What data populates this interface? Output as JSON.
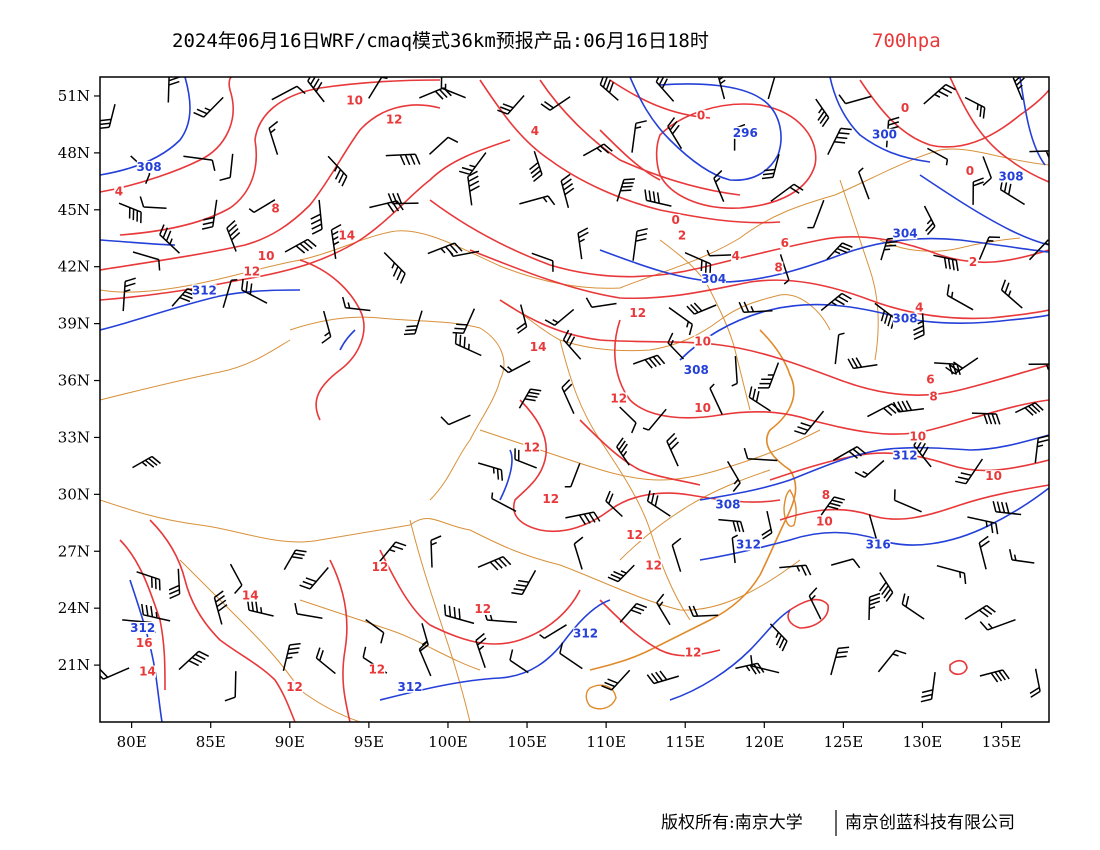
{
  "title": {
    "main": "2024年06月16日WRF/cmaq模式36km预报产品:06月16日18时",
    "level": "700hpa",
    "level_color": "#e8383a"
  },
  "axes": {
    "x_ticks": [
      "80E",
      "85E",
      "90E",
      "95E",
      "100E",
      "105E",
      "110E",
      "115E",
      "120E",
      "125E",
      "130E",
      "135E"
    ],
    "y_ticks": [
      "51N",
      "48N",
      "45N",
      "42N",
      "39N",
      "36N",
      "33N",
      "30N",
      "27N",
      "24N",
      "21N"
    ],
    "lon_range": [
      78,
      138
    ],
    "lat_range": [
      18,
      52
    ]
  },
  "map_layers": {
    "temperature_contours": {
      "color": "#e8383a",
      "unit": "°C"
    },
    "height_contours": {
      "color": "#2440d8",
      "unit": "dagpm"
    },
    "wind_barbs": {
      "color": "#000000"
    },
    "boundaries": {
      "color": "#d8913a"
    }
  },
  "contour_labels": {
    "temperature": [
      {
        "text": "10",
        "lon": 94.1,
        "lat": 50.6
      },
      {
        "text": "12",
        "lon": 96.6,
        "lat": 49.6
      },
      {
        "text": "4",
        "lon": 105.5,
        "lat": 49.0
      },
      {
        "text": "0",
        "lon": 116.0,
        "lat": 49.8
      },
      {
        "text": "0",
        "lon": 128.9,
        "lat": 50.2
      },
      {
        "text": "0",
        "lon": 133.0,
        "lat": 46.9
      },
      {
        "text": "4",
        "lon": 79.2,
        "lat": 45.8
      },
      {
        "text": "8",
        "lon": 89.1,
        "lat": 44.9
      },
      {
        "text": "14",
        "lon": 93.6,
        "lat": 43.5
      },
      {
        "text": "10",
        "lon": 88.5,
        "lat": 42.4
      },
      {
        "text": "12",
        "lon": 87.6,
        "lat": 41.6
      },
      {
        "text": "0",
        "lon": 114.4,
        "lat": 44.3
      },
      {
        "text": "2",
        "lon": 114.8,
        "lat": 43.5
      },
      {
        "text": "4",
        "lon": 118.2,
        "lat": 42.4
      },
      {
        "text": "6",
        "lon": 121.3,
        "lat": 43.1
      },
      {
        "text": "8",
        "lon": 120.9,
        "lat": 41.8
      },
      {
        "text": "2",
        "lon": 133.2,
        "lat": 42.1
      },
      {
        "text": "4",
        "lon": 129.8,
        "lat": 39.7
      },
      {
        "text": "12",
        "lon": 112.0,
        "lat": 39.4
      },
      {
        "text": "14",
        "lon": 105.7,
        "lat": 37.6
      },
      {
        "text": "10",
        "lon": 116.1,
        "lat": 37.9
      },
      {
        "text": "6",
        "lon": 130.5,
        "lat": 35.9
      },
      {
        "text": "8",
        "lon": 130.7,
        "lat": 35.0
      },
      {
        "text": "12",
        "lon": 110.8,
        "lat": 34.9
      },
      {
        "text": "10",
        "lon": 116.1,
        "lat": 34.4
      },
      {
        "text": "10",
        "lon": 129.7,
        "lat": 32.9
      },
      {
        "text": "12",
        "lon": 105.3,
        "lat": 32.3
      },
      {
        "text": "10",
        "lon": 134.5,
        "lat": 30.8
      },
      {
        "text": "8",
        "lon": 123.9,
        "lat": 29.8
      },
      {
        "text": "12",
        "lon": 106.5,
        "lat": 29.6
      },
      {
        "text": "10",
        "lon": 123.8,
        "lat": 28.4
      },
      {
        "text": "12",
        "lon": 111.8,
        "lat": 27.7
      },
      {
        "text": "12",
        "lon": 95.7,
        "lat": 26.0
      },
      {
        "text": "12",
        "lon": 113.0,
        "lat": 26.1
      },
      {
        "text": "14",
        "lon": 87.5,
        "lat": 24.5
      },
      {
        "text": "12",
        "lon": 102.2,
        "lat": 23.8
      },
      {
        "text": "16",
        "lon": 80.8,
        "lat": 22.0
      },
      {
        "text": "12",
        "lon": 115.5,
        "lat": 21.5
      },
      {
        "text": "14",
        "lon": 81.0,
        "lat": 20.5
      },
      {
        "text": "12",
        "lon": 95.5,
        "lat": 20.6
      },
      {
        "text": "12",
        "lon": 90.3,
        "lat": 19.7
      }
    ],
    "height": [
      {
        "text": "308",
        "lon": 81.1,
        "lat": 47.1
      },
      {
        "text": "296",
        "lon": 118.8,
        "lat": 48.9
      },
      {
        "text": "300",
        "lon": 127.6,
        "lat": 48.8
      },
      {
        "text": "308",
        "lon": 135.6,
        "lat": 46.6
      },
      {
        "text": "304",
        "lon": 128.9,
        "lat": 43.6
      },
      {
        "text": "312",
        "lon": 84.6,
        "lat": 40.6
      },
      {
        "text": "304",
        "lon": 116.8,
        "lat": 41.2
      },
      {
        "text": "308",
        "lon": 128.9,
        "lat": 39.1
      },
      {
        "text": "308",
        "lon": 115.7,
        "lat": 36.4
      },
      {
        "text": "312",
        "lon": 128.9,
        "lat": 31.9
      },
      {
        "text": "308",
        "lon": 117.7,
        "lat": 29.3
      },
      {
        "text": "312",
        "lon": 119.0,
        "lat": 27.2
      },
      {
        "text": "316",
        "lon": 127.2,
        "lat": 27.2
      },
      {
        "text": "312",
        "lon": 80.7,
        "lat": 22.8
      },
      {
        "text": "312",
        "lon": 108.7,
        "lat": 22.5
      },
      {
        "text": "312",
        "lon": 97.6,
        "lat": 19.7
      }
    ]
  },
  "footer": {
    "copyright": "版权所有:南京大学",
    "company": "南京创蓝科技有限公司"
  }
}
